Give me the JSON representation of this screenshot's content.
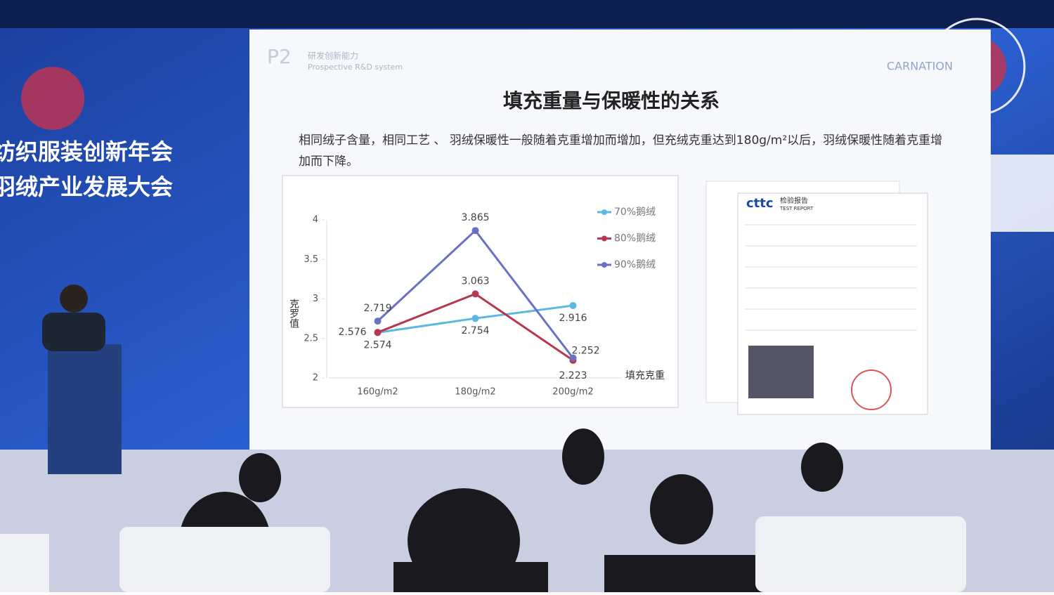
{
  "stage": {
    "left_line1": "纺织服装创新年会",
    "left_line2": "羽绒产业发展大会"
  },
  "slide": {
    "page": "P2",
    "header": "研发创新能力",
    "header_en": "Prospective R&D system",
    "brand": "CARNATION",
    "description": "相同绒子含量，相同工艺 、 羽绒保暖性一般随着克重增加而增加，但充绒克重达到180g/m²以后，羽绒保暖性随着克重增加而下降。"
  },
  "report": {
    "logo": "cttc",
    "title": "检验报告",
    "title_en": "TEST REPORT"
  },
  "chart_data": {
    "type": "line",
    "title": "填充重量与保暖性的关系",
    "x_label": "填充克重",
    "y_label": "克罗值",
    "categories": [
      "160g/m2",
      "180g/m2",
      "200g/m2"
    ],
    "series": [
      {
        "name": "70%鹅绒",
        "color": "#5bb8e0",
        "values": [
          2.574,
          2.754,
          2.916
        ]
      },
      {
        "name": "80%鹅绒",
        "color": "#b8374d",
        "values": [
          2.576,
          3.063,
          2.223
        ]
      },
      {
        "name": "90%鹅绒",
        "color": "#6a70c4",
        "values": [
          2.719,
          3.865,
          2.252
        ]
      }
    ],
    "ylim": [
      2,
      4
    ],
    "yticks": [
      2,
      2.5,
      3,
      3.5,
      4
    ],
    "grid": false,
    "legend": "right"
  }
}
